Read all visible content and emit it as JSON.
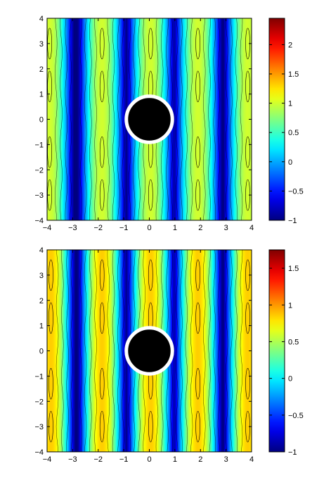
{
  "chart_data": [
    {
      "type": "heatmap",
      "subtype": "filled-contour",
      "title": "",
      "xlabel": "",
      "ylabel": "",
      "xlim": [
        -4,
        4
      ],
      "ylim": [
        -4,
        4
      ],
      "x_ticks": [
        "-4",
        "-3",
        "-2",
        "-1",
        "0",
        "1",
        "2",
        "3",
        "4"
      ],
      "y_ticks": [
        "-4",
        "-3",
        "-2",
        "-1",
        "0",
        "1",
        "2",
        "3",
        "4"
      ],
      "field_range": [
        -1,
        2.45
      ],
      "colorbar_ticks": [
        "2",
        "1.5",
        "1",
        "0.5",
        "0",
        "-0.5",
        "-1"
      ],
      "colormap": "jet",
      "stripe_centers_x": [
        -3.9,
        -1.85,
        0.05,
        1.9,
        3.85
      ],
      "stripe_peak_value": 1.0,
      "obstacle": {
        "shape": "circle",
        "center": [
          0,
          0
        ],
        "radius": 0.9,
        "fill": "#000000",
        "rim": "#ffffff"
      },
      "grid": false
    },
    {
      "type": "heatmap",
      "subtype": "filled-contour",
      "title": "",
      "xlabel": "",
      "ylabel": "",
      "xlim": [
        -4,
        4
      ],
      "ylim": [
        -4,
        4
      ],
      "x_ticks": [
        "-4",
        "-3",
        "-2",
        "-1",
        "0",
        "1",
        "2",
        "3",
        "4"
      ],
      "y_ticks": [
        "-4",
        "-3",
        "-2",
        "-1",
        "0",
        "1",
        "2",
        "3",
        "4"
      ],
      "field_range": [
        -1,
        1.75
      ],
      "colorbar_ticks": [
        "1.5",
        "1",
        "0.5",
        "0",
        "-0.5",
        "-1"
      ],
      "colormap": "jet",
      "stripe_centers_x": [
        -3.85,
        -1.85,
        0.05,
        1.9,
        3.85
      ],
      "stripe_peak_value": 0.85,
      "obstacle": {
        "shape": "circle",
        "center": [
          0,
          0
        ],
        "radius": 0.9,
        "fill": "#000000",
        "rim": "#ffffff"
      },
      "grid": false
    }
  ]
}
